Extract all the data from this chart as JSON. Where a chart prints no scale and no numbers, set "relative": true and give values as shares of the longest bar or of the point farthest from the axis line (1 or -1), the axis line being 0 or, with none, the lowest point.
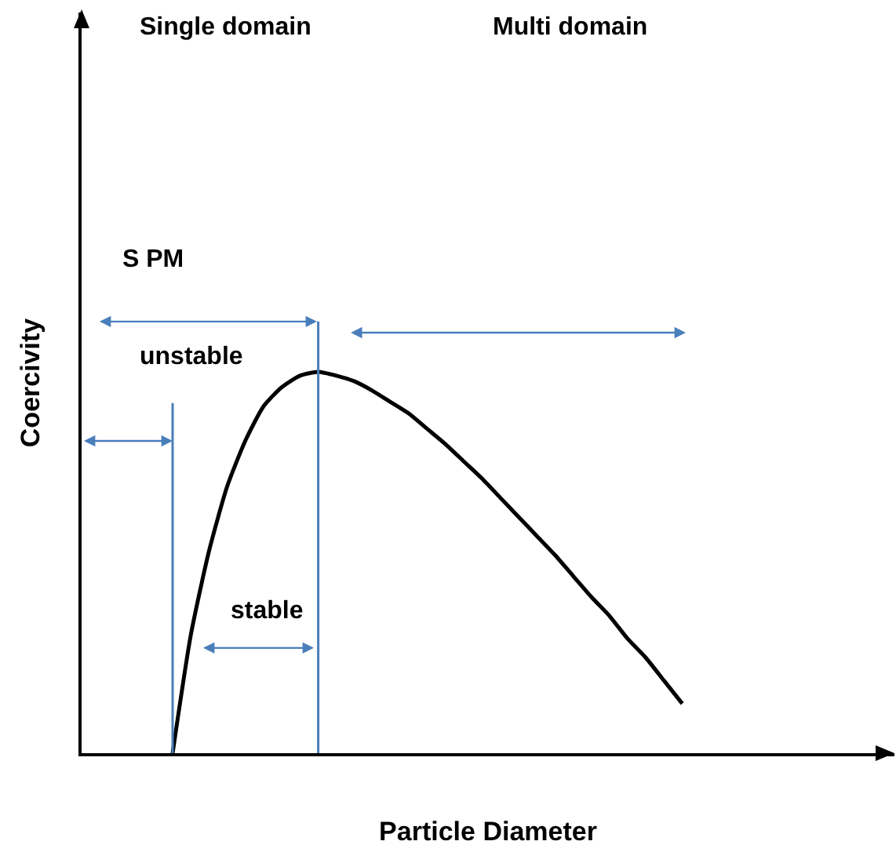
{
  "chart_data": {
    "type": "line",
    "relative": true,
    "xlabel": "Particle Diameter",
    "ylabel": "Coercivity",
    "categories": [
      null,
      null,
      null,
      null,
      null,
      null,
      null,
      null,
      null,
      null,
      null,
      null,
      null,
      null,
      null,
      null,
      null,
      null,
      null,
      null,
      null,
      null,
      null,
      null,
      null,
      null,
      null,
      null,
      null,
      null,
      null,
      null,
      null,
      null,
      null,
      null,
      null,
      null,
      null,
      null,
      null,
      null,
      null,
      null,
      null
    ],
    "color": "#000000",
    "values": [
      null,
      null,
      null,
      null,
      null,
      0,
      0.31,
      0.53,
      0.7,
      0.82,
      0.91,
      0.96,
      0.99,
      1,
      0.99,
      0.975,
      0.95,
      0.92,
      0.89,
      0.85,
      0.81,
      0.765,
      0.72,
      0.67,
      0.62,
      0.57,
      0.52,
      0.465,
      0.41,
      0.36,
      0.3,
      0.25,
      0.19,
      0.13,
      null,
      null,
      null,
      null,
      null,
      null,
      null,
      null,
      null,
      null,
      null
    ],
    "annotations": [
      "Single domain",
      "Multi domain",
      "S PM",
      "unstable",
      "stable"
    ]
  }
}
